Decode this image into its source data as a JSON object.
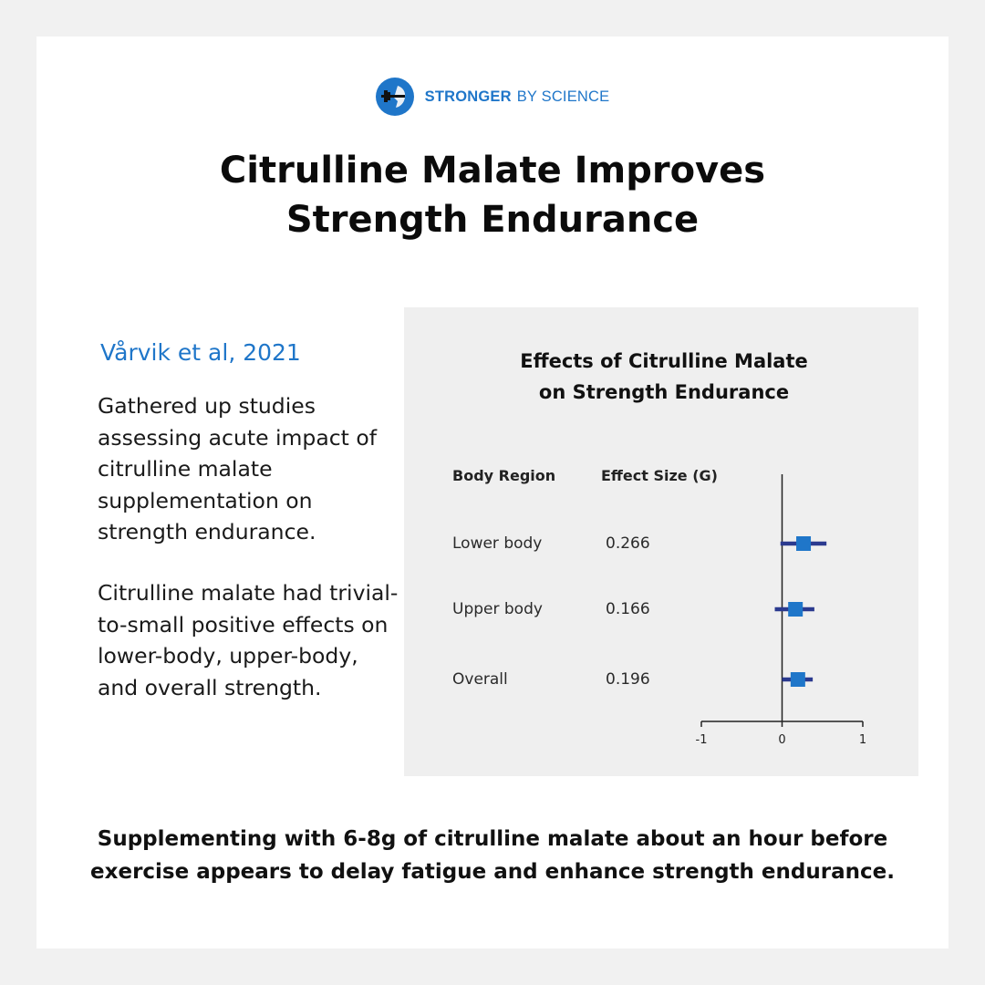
{
  "brand": {
    "name_bold": "STRONGER",
    "name_rest": "BY SCIENCE",
    "accent_color": "#1f76c9"
  },
  "title": {
    "line1": "Citrulline Malate Improves",
    "line2": "Strength Endurance"
  },
  "citation": "Vårvik et al, 2021",
  "paragraphs": [
    "Gathered up studies assessing acute impact of citrulline malate supplementation on strength endurance.",
    "Citrulline malate had trivial-to-small positive effects on lower-body, upper-body, and overall strength."
  ],
  "chart_data": {
    "type": "forest",
    "title_lines": [
      "Effects of Citrulline Malate",
      "on Strength Endurance"
    ],
    "column_headers": {
      "region": "Body Region",
      "effect": "Effect Size (G)"
    },
    "rows": [
      {
        "label": "Lower body",
        "value_label": "0.266",
        "effect": 0.266,
        "ci": [
          -0.02,
          0.55
        ]
      },
      {
        "label": "Upper body",
        "value_label": "0.166",
        "effect": 0.166,
        "ci": [
          -0.09,
          0.4
        ]
      },
      {
        "label": "Overall",
        "value_label": "0.196",
        "effect": 0.196,
        "ci": [
          0.0,
          0.38
        ]
      }
    ],
    "x_range": [
      -1,
      1
    ],
    "x_ticks": [
      "-1",
      "0",
      "1"
    ],
    "colors": {
      "marker": "#1f76c9",
      "ci_line": "#2b3a8f",
      "axis": "#222222"
    }
  },
  "footer": "Supplementing with 6-8g of citrulline malate about an hour before exercise appears to delay fatigue and enhance strength endurance."
}
